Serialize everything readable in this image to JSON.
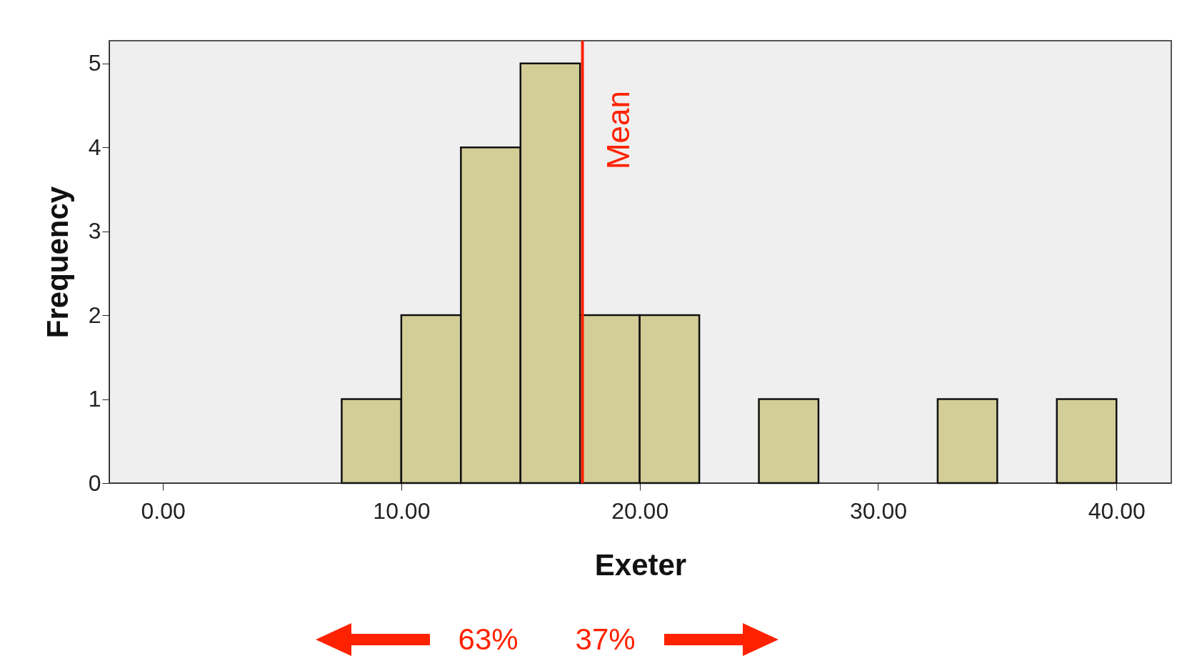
{
  "chart_data": {
    "type": "histogram",
    "xlabel": "Exeter",
    "ylabel": "Frequency",
    "bins": [
      0,
      2.5,
      5,
      7.5,
      10,
      12.5,
      15,
      17.5,
      20,
      22.5,
      25,
      27.5,
      30,
      32.5,
      35,
      37.5,
      40
    ],
    "values": [
      0,
      0,
      0,
      1,
      2,
      4,
      5,
      2,
      2,
      0,
      1,
      0,
      0,
      1,
      0,
      1
    ],
    "color": "#d3cd97",
    "xlim": [
      -2.25,
      42.3
    ],
    "ylim": [
      0,
      5.27
    ],
    "xticks": [
      {
        "value": 0,
        "label": "0.00"
      },
      {
        "value": 10,
        "label": "10.00"
      },
      {
        "value": 20,
        "label": "20.00"
      },
      {
        "value": 30,
        "label": "30.00"
      },
      {
        "value": 40,
        "label": "40.00"
      }
    ],
    "yticks": [
      0,
      1,
      2,
      3,
      4,
      5
    ],
    "grid": false,
    "ref_lines": [
      {
        "axis": "x",
        "value": 17.6,
        "label": "Mean",
        "color": "#ff2200"
      }
    ],
    "annotations": [
      "63%",
      "37%"
    ]
  }
}
